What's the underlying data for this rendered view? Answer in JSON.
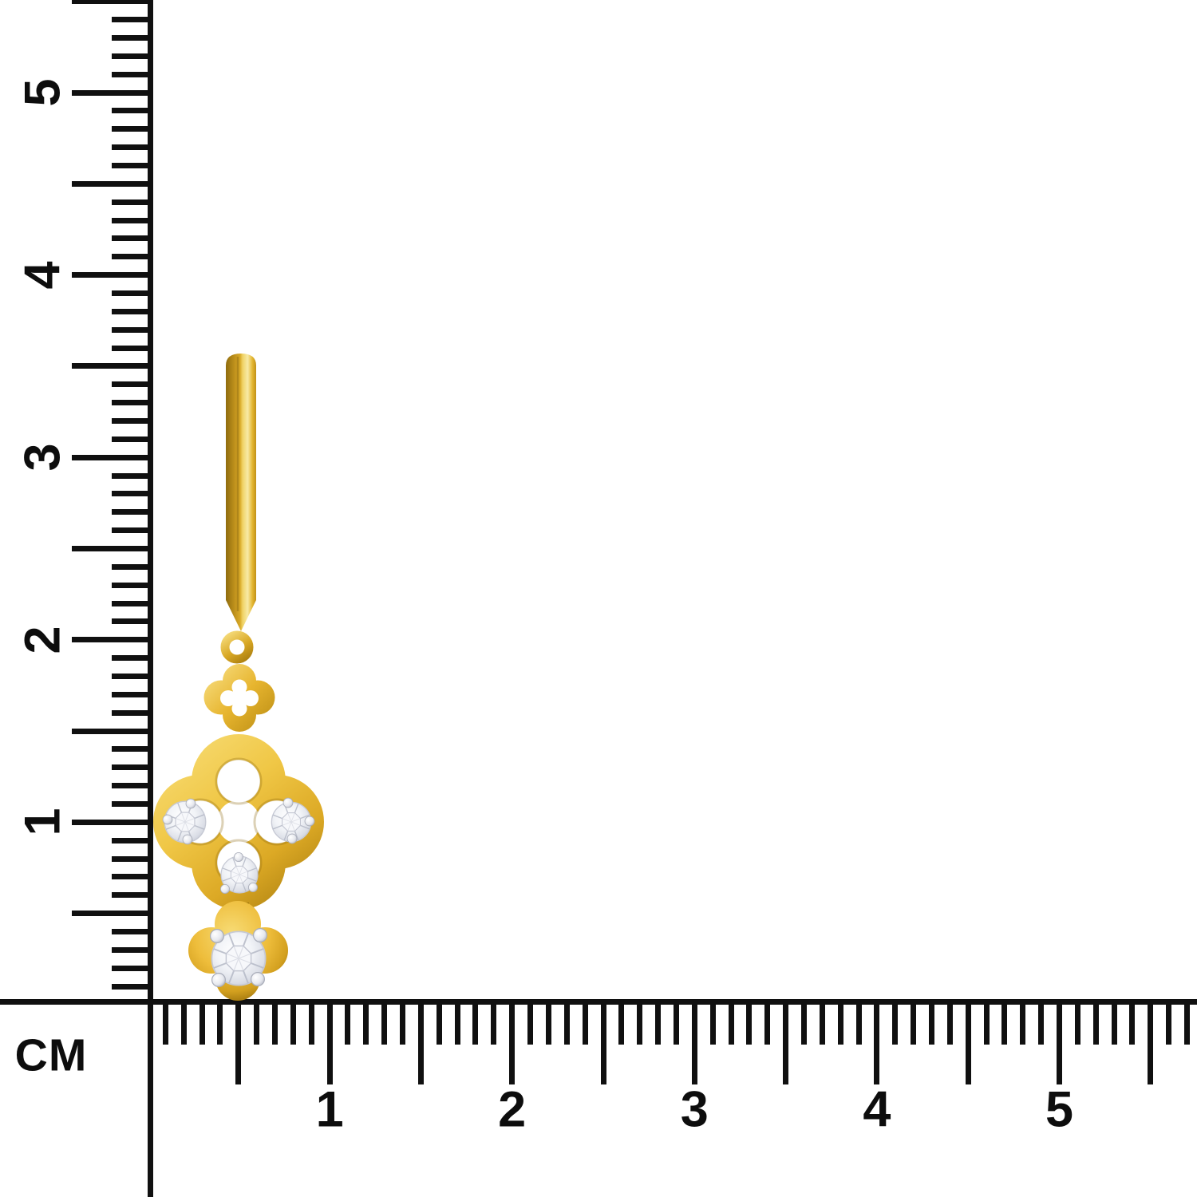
{
  "image": {
    "type": "product-photo-with-measurement-scale",
    "subject": "Yellow gold drop earring with quatrefoil motifs set with round diamonds",
    "background": "#ffffff"
  },
  "ruler": {
    "unit_label": "CM",
    "ink_color": "#101010",
    "vertical_labels": [
      "5",
      "4",
      "3",
      "2",
      "1"
    ],
    "horizontal_labels": [
      "1",
      "2",
      "3",
      "4",
      "5"
    ]
  },
  "earring": {
    "gold_light": "#f8eaa6",
    "gold_mid": "#eabc37",
    "gold_dark": "#96700c",
    "diamond_light": "#ffffff",
    "diamond_dark": "#bfc3cf",
    "diamond_count": 4
  }
}
